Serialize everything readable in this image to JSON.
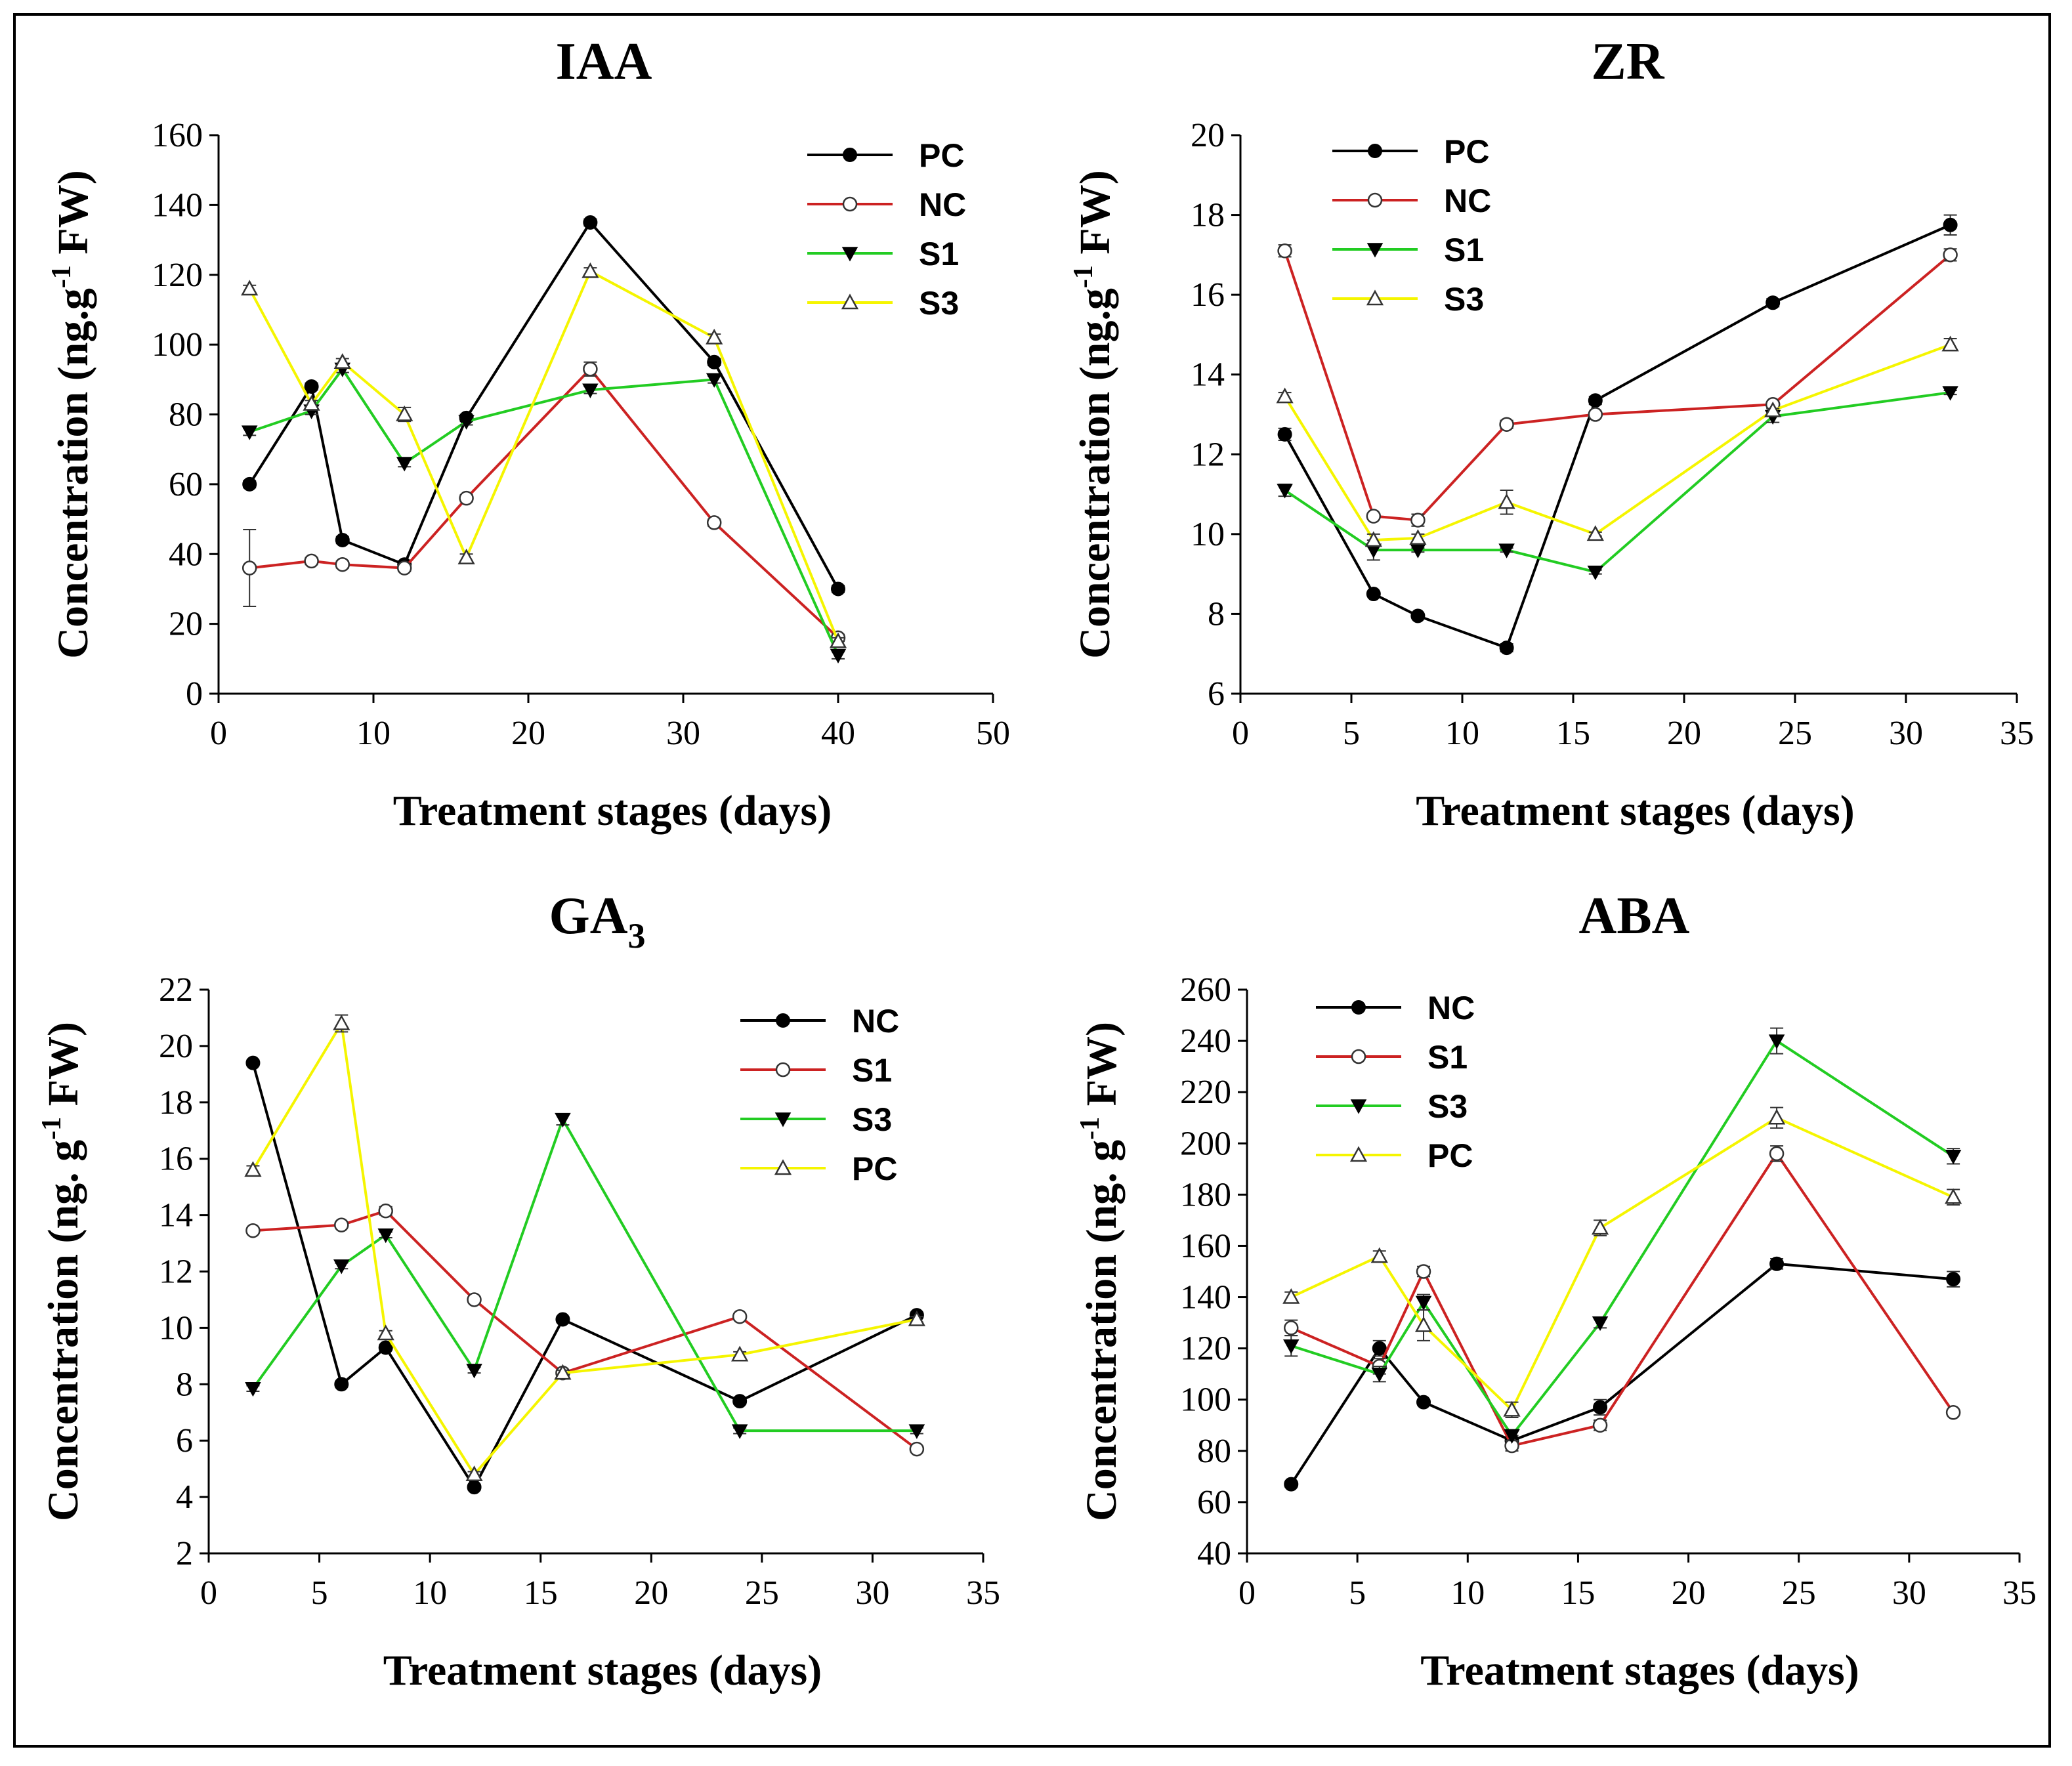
{
  "chart_data": [
    {
      "type": "line",
      "title": "IAA",
      "title_sub": "",
      "xlabel": "Treatment stages (days)",
      "ylabel": "Concentration (ng.g-1 FW)",
      "ylabel_parts": {
        "pre": "Concentration (ng.g",
        "sup": "-1",
        "post": " FW)"
      },
      "xlim": [
        0,
        50
      ],
      "xticks": [
        0,
        10,
        20,
        30,
        40,
        50
      ],
      "ylim": [
        0,
        160
      ],
      "yticks": [
        0,
        20,
        40,
        60,
        80,
        100,
        120,
        140,
        160
      ],
      "legend_position": "top-right",
      "series": [
        {
          "name": "PC",
          "color": "#000000",
          "marker": "filled-circle",
          "x": [
            2,
            6,
            8,
            12,
            16,
            24,
            32,
            40
          ],
          "y": [
            60,
            88,
            44,
            37,
            79,
            135,
            95,
            30
          ],
          "err": [
            1,
            1,
            1,
            1,
            1,
            1,
            1,
            1
          ]
        },
        {
          "name": "NC",
          "color": "#cc2222",
          "marker": "open-circle",
          "x": [
            2,
            6,
            8,
            12,
            16,
            24,
            32,
            40
          ],
          "y": [
            36,
            38,
            37,
            36,
            56,
            93,
            49,
            16
          ],
          "err": [
            11,
            1,
            1,
            1,
            1,
            2,
            1,
            1
          ]
        },
        {
          "name": "S1",
          "color": "#22cc22",
          "marker": "down-triangle",
          "x": [
            2,
            6,
            8,
            12,
            16,
            24,
            32,
            40
          ],
          "y": [
            75,
            81,
            93,
            66,
            78,
            87,
            90,
            11
          ],
          "err": [
            1,
            1,
            1,
            1,
            1,
            1,
            1,
            1
          ]
        },
        {
          "name": "S3",
          "color": "#f5f500",
          "marker": "up-triangle",
          "x": [
            2,
            6,
            8,
            12,
            16,
            24,
            32,
            40
          ],
          "y": [
            116,
            83,
            95,
            80,
            39,
            121,
            102,
            15
          ],
          "err": [
            1,
            1,
            1,
            2,
            1,
            1,
            1,
            1
          ]
        }
      ]
    },
    {
      "type": "line",
      "title": "ZR",
      "title_sub": "",
      "xlabel": "Treatment stages (days)",
      "ylabel": "Concentration (ng.g-1 FW)",
      "ylabel_parts": {
        "pre": "Concentration (ng.g",
        "sup": "-1",
        "post": " FW)"
      },
      "xlim": [
        0,
        35
      ],
      "xticks": [
        0,
        5,
        10,
        15,
        20,
        25,
        30,
        35
      ],
      "ylim": [
        6,
        20
      ],
      "yticks": [
        6,
        8,
        10,
        12,
        14,
        16,
        18,
        20
      ],
      "legend_position": "top-left",
      "series": [
        {
          "name": "PC",
          "color": "#000000",
          "marker": "filled-circle",
          "x": [
            2,
            6,
            8,
            12,
            16,
            24,
            32
          ],
          "y": [
            12.5,
            8.5,
            7.95,
            7.15,
            13.35,
            15.8,
            17.75
          ],
          "err": [
            0.15,
            0.05,
            0.05,
            0.1,
            0.1,
            0.1,
            0.25
          ]
        },
        {
          "name": "NC",
          "color": "#cc2222",
          "marker": "open-circle",
          "x": [
            2,
            6,
            8,
            12,
            16,
            24,
            32
          ],
          "y": [
            17.1,
            10.45,
            10.35,
            12.75,
            13.0,
            13.25,
            17.0
          ],
          "err": [
            0.15,
            0.05,
            0.15,
            0.1,
            0.05,
            0.05,
            0.15
          ]
        },
        {
          "name": "S1",
          "color": "#22cc22",
          "marker": "down-triangle",
          "x": [
            2,
            6,
            8,
            12,
            16,
            24,
            32
          ],
          "y": [
            11.1,
            9.6,
            9.6,
            9.6,
            9.05,
            12.95,
            13.55
          ],
          "err": [
            0.15,
            0.25,
            0.05,
            0.05,
            0.05,
            0.15,
            0.05
          ]
        },
        {
          "name": "S3",
          "color": "#f5f500",
          "marker": "up-triangle",
          "x": [
            2,
            6,
            8,
            12,
            16,
            24,
            32
          ],
          "y": [
            13.45,
            9.85,
            9.9,
            10.8,
            10.0,
            13.1,
            14.75
          ],
          "err": [
            0.1,
            0.15,
            0.1,
            0.3,
            0.05,
            0.05,
            0.15
          ]
        }
      ]
    },
    {
      "type": "line",
      "title": "GA",
      "title_sub": "3",
      "xlabel": "Treatment stages (days)",
      "ylabel": "Concentration (ng. g-1 FW)",
      "ylabel_parts": {
        "pre": "Concentration (ng. g",
        "sup": "-1",
        "post": " FW)"
      },
      "xlim": [
        0,
        35
      ],
      "xticks": [
        0,
        5,
        10,
        15,
        20,
        25,
        30,
        35
      ],
      "ylim": [
        2,
        22
      ],
      "yticks": [
        2,
        4,
        6,
        8,
        10,
        12,
        14,
        16,
        18,
        20,
        22
      ],
      "legend_position": "top-right",
      "series": [
        {
          "name": "NC",
          "color": "#000000",
          "marker": "filled-circle",
          "x": [
            2,
            6,
            8,
            12,
            16,
            24,
            32
          ],
          "y": [
            19.4,
            8.0,
            9.3,
            4.35,
            10.3,
            7.4,
            10.45
          ],
          "err": [
            0.1,
            0.1,
            0.1,
            0.1,
            0.1,
            0.1,
            0.1
          ]
        },
        {
          "name": "S1",
          "color": "#cc2222",
          "marker": "open-circle",
          "x": [
            2,
            6,
            8,
            12,
            16,
            24,
            32
          ],
          "y": [
            13.45,
            13.65,
            14.15,
            11.0,
            8.4,
            10.4,
            5.7
          ],
          "err": [
            0.1,
            0.1,
            0.15,
            0.1,
            0.1,
            0.1,
            0.1
          ]
        },
        {
          "name": "S3",
          "color": "#22cc22",
          "marker": "down-triangle",
          "x": [
            2,
            6,
            8,
            12,
            16,
            24,
            32
          ],
          "y": [
            7.85,
            12.2,
            13.3,
            8.5,
            17.4,
            6.35,
            6.35
          ],
          "err": [
            0.1,
            0.1,
            0.1,
            0.1,
            0.2,
            0.1,
            0.1
          ]
        },
        {
          "name": "PC",
          "color": "#f5f500",
          "marker": "up-triangle",
          "x": [
            2,
            6,
            8,
            12,
            16,
            24,
            32
          ],
          "y": [
            15.6,
            20.8,
            9.8,
            4.8,
            8.4,
            9.05,
            10.3
          ],
          "err": [
            0.15,
            0.3,
            0.1,
            0.1,
            0.1,
            0.1,
            0.1
          ]
        }
      ]
    },
    {
      "type": "line",
      "title": "ABA",
      "title_sub": "",
      "xlabel": "Treatment stages (days)",
      "ylabel": "Concentration (ng. g-1 FW)",
      "ylabel_parts": {
        "pre": "Concentration (ng. g",
        "sup": "-1",
        "post": " FW)"
      },
      "xlim": [
        0,
        35
      ],
      "xticks": [
        0,
        5,
        10,
        15,
        20,
        25,
        30,
        35
      ],
      "ylim": [
        40,
        260
      ],
      "yticks": [
        40,
        60,
        80,
        100,
        120,
        140,
        160,
        180,
        200,
        220,
        240,
        260
      ],
      "legend_position": "top-left",
      "series": [
        {
          "name": "NC",
          "color": "#000000",
          "marker": "filled-circle",
          "x": [
            2,
            6,
            8,
            12,
            16,
            24,
            32
          ],
          "y": [
            67,
            120,
            99,
            84,
            97,
            153,
            147
          ],
          "err": [
            1,
            3,
            1,
            2,
            3,
            2,
            3
          ]
        },
        {
          "name": "S1",
          "color": "#cc2222",
          "marker": "open-circle",
          "x": [
            2,
            6,
            8,
            12,
            16,
            24,
            32
          ],
          "y": [
            128,
            113,
            150,
            82,
            90,
            196,
            95
          ],
          "err": [
            3,
            3,
            2,
            2,
            2,
            3,
            1
          ]
        },
        {
          "name": "S3",
          "color": "#22cc22",
          "marker": "down-triangle",
          "x": [
            2,
            6,
            8,
            12,
            16,
            24,
            32
          ],
          "y": [
            121,
            110,
            138,
            86,
            130,
            240,
            195
          ],
          "err": [
            4,
            3,
            3,
            2,
            2,
            5,
            3
          ]
        },
        {
          "name": "PC",
          "color": "#f5f500",
          "marker": "up-triangle",
          "x": [
            2,
            6,
            8,
            12,
            16,
            24,
            32
          ],
          "y": [
            140,
            156,
            129,
            96,
            167,
            210,
            179
          ],
          "err": [
            2,
            2,
            6,
            3,
            3,
            4,
            3
          ]
        }
      ]
    }
  ]
}
